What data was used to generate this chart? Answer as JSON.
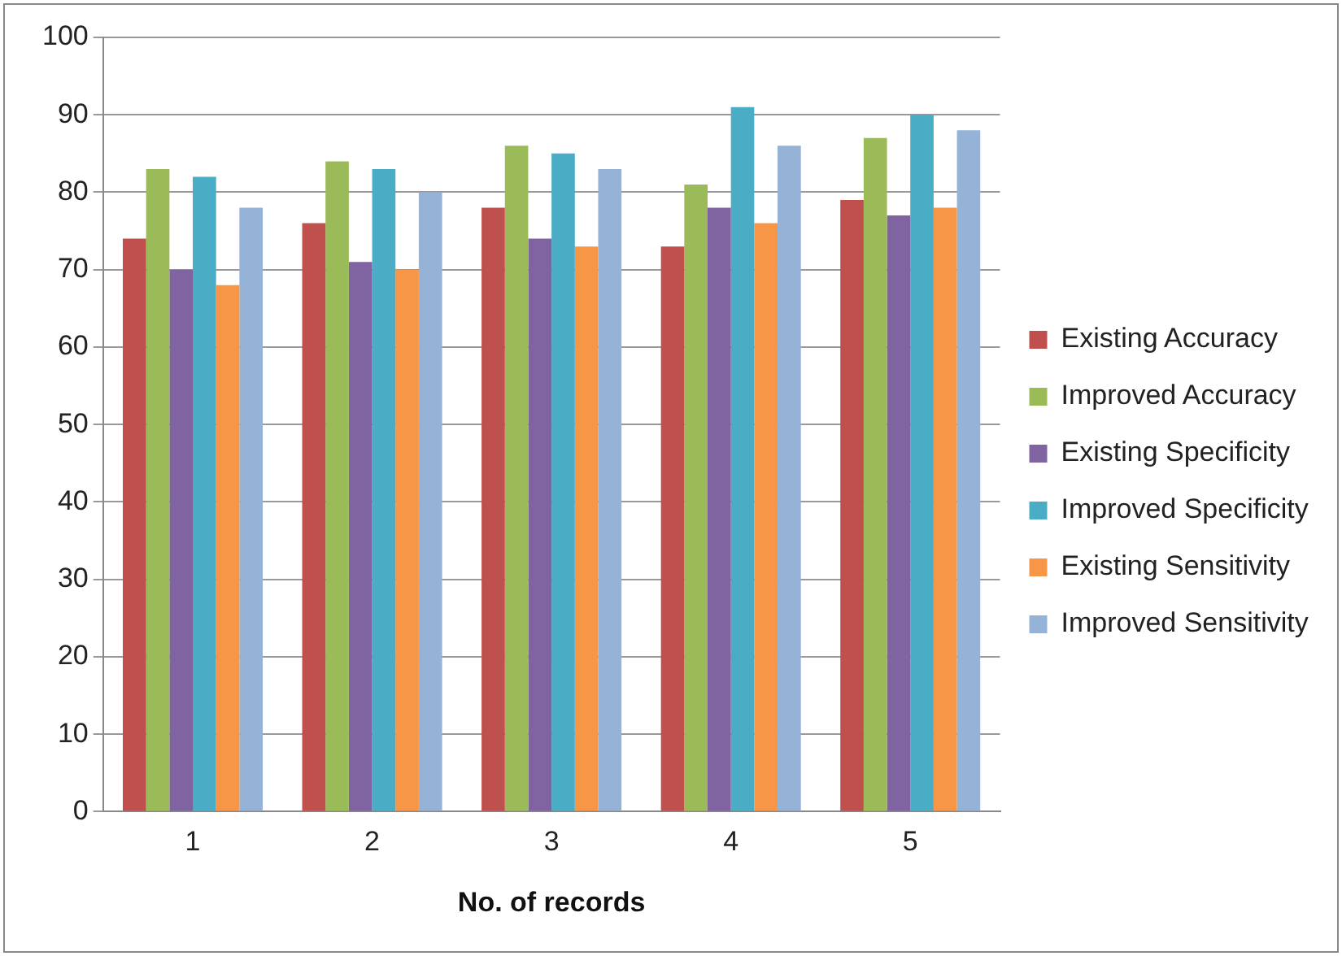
{
  "chart_data": {
    "type": "bar",
    "xlabel": "No. of records",
    "categories": [
      "1",
      "2",
      "3",
      "4",
      "5"
    ],
    "series": [
      {
        "name": "Existing Accuracy",
        "color": "#c0504d",
        "values": [
          74,
          76,
          78,
          73,
          79
        ]
      },
      {
        "name": "Improved Accuracy",
        "color": "#9bbb59",
        "values": [
          83,
          84,
          86,
          81,
          87
        ]
      },
      {
        "name": "Existing Specificity",
        "color": "#8064a2",
        "values": [
          70,
          71,
          74,
          78,
          77
        ]
      },
      {
        "name": "Improved Specificity",
        "color": "#4bacc6",
        "values": [
          82,
          83,
          85,
          91,
          90
        ]
      },
      {
        "name": "Existing Sensitivity",
        "color": "#f79646",
        "values": [
          68,
          70,
          73,
          76,
          78
        ]
      },
      {
        "name": "Improved Sensitivity",
        "color": "#95b3d7",
        "values": [
          78,
          80,
          83,
          86,
          88
        ]
      }
    ],
    "ylim": [
      0,
      100
    ],
    "yticks": [
      0,
      10,
      20,
      30,
      40,
      50,
      60,
      70,
      80,
      90,
      100
    ],
    "grid": "y",
    "legend": "right"
  }
}
